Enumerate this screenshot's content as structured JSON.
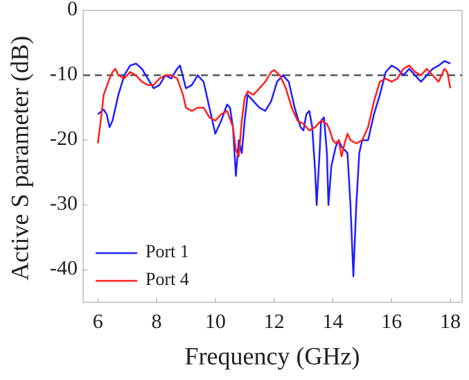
{
  "chart_data": {
    "type": "line",
    "x_label": "Frequency (GHz)",
    "y_label": "Active S parameter (dB)",
    "xlim": [
      5.5,
      18.4
    ],
    "ylim": [
      -45,
      0
    ],
    "xticks": [
      6,
      8,
      10,
      12,
      14,
      16,
      18
    ],
    "yticks": [
      0,
      -10,
      -20,
      -30,
      -40
    ],
    "reference_line": {
      "y": -10,
      "color": "#555555",
      "dash": true
    },
    "legend": "lower left",
    "series": [
      {
        "name": "Port 1",
        "color": "#1f1fff",
        "x": [
          6.0,
          6.2,
          6.3,
          6.4,
          6.5,
          6.7,
          6.9,
          7.1,
          7.3,
          7.5,
          7.7,
          7.9,
          8.1,
          8.3,
          8.5,
          8.7,
          8.8,
          9.0,
          9.2,
          9.4,
          9.6,
          9.8,
          10.0,
          10.2,
          10.4,
          10.5,
          10.6,
          10.7,
          10.8,
          10.9,
          11.0,
          11.1,
          11.3,
          11.5,
          11.7,
          11.9,
          12.1,
          12.3,
          12.5,
          12.7,
          12.9,
          13.0,
          13.1,
          13.2,
          13.3,
          13.4,
          13.45,
          13.55,
          13.6,
          13.7,
          13.8,
          13.85,
          13.95,
          14.1,
          14.2,
          14.3,
          14.5,
          14.6,
          14.7,
          14.8,
          14.9,
          15.0,
          15.2,
          15.4,
          15.6,
          15.8,
          16.0,
          16.2,
          16.4,
          16.6,
          16.8,
          17.0,
          17.2,
          17.4,
          17.6,
          17.8,
          18.0
        ],
        "values": [
          -16,
          -15.3,
          -16,
          -18,
          -17,
          -13,
          -10,
          -8.5,
          -8.2,
          -9,
          -10.5,
          -12,
          -11.5,
          -10,
          -10.5,
          -9,
          -8.5,
          -12,
          -11.5,
          -10,
          -11,
          -15,
          -19,
          -17,
          -14.5,
          -15,
          -18,
          -25.5,
          -20,
          -22,
          -17,
          -13,
          -14,
          -15,
          -15.5,
          -14,
          -11,
          -10,
          -11,
          -15,
          -18,
          -18.5,
          -16,
          -15.5,
          -18,
          -25,
          -30,
          -22,
          -17,
          -16.5,
          -22,
          -30,
          -24,
          -21,
          -20,
          -21,
          -22,
          -30,
          -41,
          -30,
          -22,
          -20,
          -20,
          -16,
          -13,
          -9.5,
          -8.5,
          -9,
          -10,
          -9,
          -10,
          -11,
          -10,
          -9,
          -8.5,
          -7.8,
          -8.2
        ]
      },
      {
        "name": "Port 4",
        "color": "#ff1f1f",
        "x": [
          6.0,
          6.1,
          6.2,
          6.4,
          6.5,
          6.6,
          6.7,
          6.9,
          7.1,
          7.3,
          7.5,
          7.7,
          7.9,
          8.1,
          8.3,
          8.5,
          8.7,
          8.9,
          9.0,
          9.2,
          9.4,
          9.6,
          9.8,
          10.0,
          10.2,
          10.4,
          10.6,
          10.7,
          10.8,
          10.9,
          11.0,
          11.1,
          11.3,
          11.5,
          11.7,
          11.9,
          12.0,
          12.2,
          12.4,
          12.6,
          12.8,
          13.0,
          13.2,
          13.4,
          13.6,
          13.8,
          13.9,
          14.0,
          14.1,
          14.2,
          14.3,
          14.4,
          14.5,
          14.6,
          14.8,
          15.0,
          15.2,
          15.4,
          15.6,
          15.8,
          16.0,
          16.2,
          16.4,
          16.6,
          16.8,
          17.0,
          17.2,
          17.4,
          17.6,
          17.8,
          17.9,
          18.0
        ],
        "values": [
          -20.5,
          -17,
          -13,
          -10.5,
          -9.5,
          -9,
          -10,
          -10.5,
          -9.5,
          -10,
          -11,
          -11.5,
          -11.5,
          -10.5,
          -10,
          -10,
          -10.5,
          -13,
          -15,
          -15.5,
          -15,
          -15,
          -16.5,
          -17,
          -16,
          -15.5,
          -18,
          -21.5,
          -22.5,
          -17,
          -13.5,
          -12.5,
          -13,
          -12,
          -11,
          -9.5,
          -9.2,
          -10,
          -12,
          -15,
          -17,
          -17.5,
          -18.5,
          -18,
          -17,
          -17.5,
          -18.5,
          -20,
          -20.5,
          -20,
          -22.5,
          -20.5,
          -19,
          -20,
          -20.5,
          -20,
          -18,
          -14,
          -11,
          -10.5,
          -11,
          -10.5,
          -9,
          -8.5,
          -9.5,
          -10,
          -9,
          -10,
          -11,
          -9,
          -9.5,
          -12
        ]
      }
    ]
  }
}
